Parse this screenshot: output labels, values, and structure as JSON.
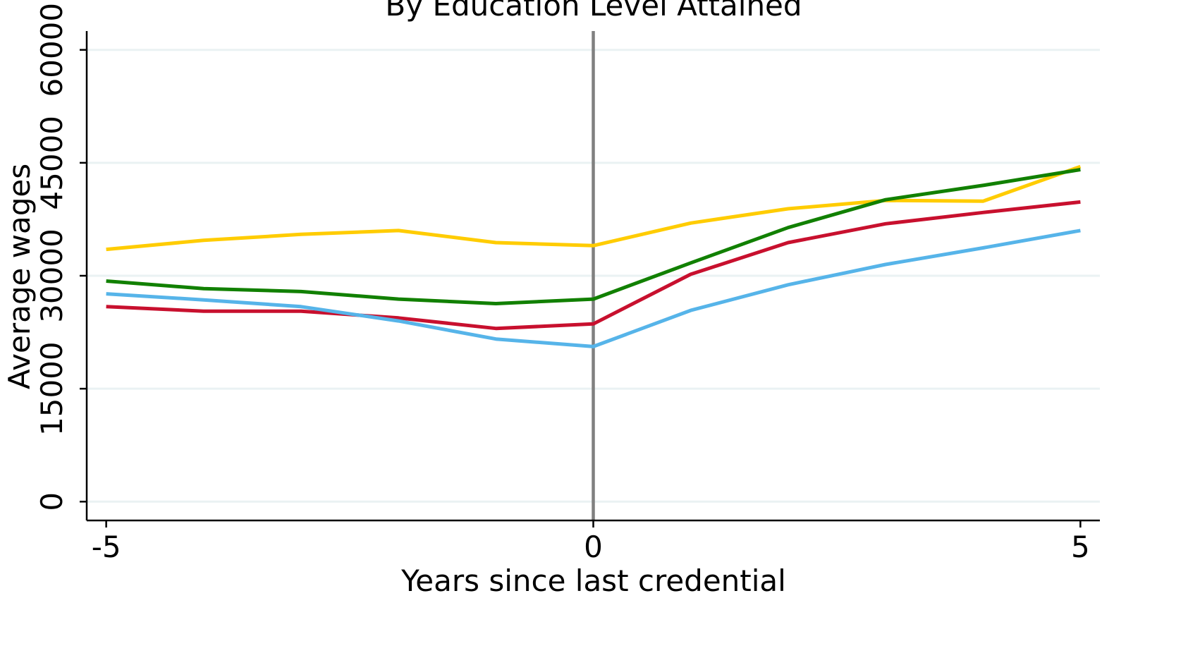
{
  "chart_data": {
    "type": "line",
    "title": "By Education Level Attained",
    "xlabel": "Years since last credential",
    "ylabel": "Average wages",
    "xlim": [
      -5.2,
      5.2
    ],
    "ylim": [
      -2500,
      62500
    ],
    "x_ticks": [
      -5,
      0,
      5
    ],
    "x_tick_labels": [
      "-5",
      "0",
      "5"
    ],
    "y_ticks": [
      0,
      15000,
      30000,
      45000,
      60000
    ],
    "y_tick_labels": [
      "0",
      "15000",
      "30000",
      "45000",
      "60000"
    ],
    "grid": "horizontal",
    "reference_line": {
      "x": 0,
      "color": "#808080"
    },
    "x": [
      -5,
      -4,
      -3,
      -2,
      -1,
      0,
      1,
      2,
      3,
      4,
      5
    ],
    "series": [
      {
        "color": "#FFCC00",
        "values": [
          33500,
          34700,
          35500,
          36000,
          34400,
          34000,
          37000,
          38900,
          40000,
          39900,
          44500
        ]
      },
      {
        "color": "#118000",
        "values": [
          29300,
          28300,
          27900,
          26900,
          26300,
          26900,
          31700,
          36400,
          40100,
          42000,
          44100
        ]
      },
      {
        "color": "#C8102E",
        "values": [
          25900,
          25300,
          25300,
          24400,
          23000,
          23600,
          30200,
          34400,
          36900,
          38400,
          39800
        ]
      },
      {
        "color": "#56B4E9",
        "values": [
          27600,
          26800,
          25900,
          24000,
          21600,
          20600,
          25400,
          28800,
          31500,
          33700,
          36000
        ]
      }
    ]
  }
}
